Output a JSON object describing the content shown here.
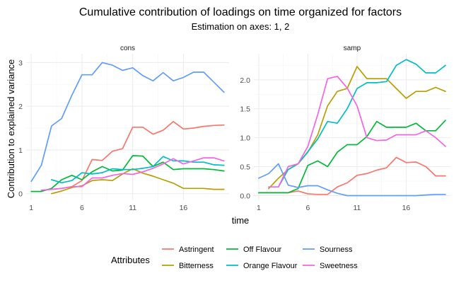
{
  "chart_data": {
    "type": "line",
    "title": "Cumulative contribution of loadings on time organized for factors",
    "subtitle": "Estimation on axes: 1, 2",
    "xlabel": "time",
    "ylabel": "Contribution to explained variance",
    "x_ticks": [
      1,
      6,
      11,
      16
    ],
    "legend": {
      "title": "Attributes",
      "position": "bottom",
      "entries": [
        "Astringent",
        "Bitterness",
        "Off Flavour",
        "Orange Flavour",
        "Sourness",
        "Sweetness"
      ]
    },
    "colors": {
      "Astringent": "#F8766D",
      "Bitterness": "#B79F00",
      "Off Flavour": "#00BA38",
      "Orange Flavour": "#00BFC4",
      "Sourness": "#619CFF",
      "Sweetness": "#F564E3"
    },
    "panels": [
      {
        "name": "cons",
        "xlim": [
          0.5,
          20.5
        ],
        "ylim": [
          -0.15,
          3.2
        ],
        "y_ticks": [
          0,
          1,
          2,
          3
        ],
        "series": [
          {
            "name": "Astringent",
            "x": [
              2,
              3,
              4,
              5,
              6,
              7,
              8,
              9,
              10,
              11,
              12,
              13,
              14,
              15,
              16,
              17,
              18,
              19,
              20
            ],
            "values": [
              0.08,
              0.1,
              0.12,
              0.16,
              0.3,
              0.78,
              0.76,
              0.97,
              1.03,
              1.52,
              1.52,
              1.36,
              1.45,
              1.65,
              1.48,
              1.5,
              1.54,
              1.56,
              1.57
            ]
          },
          {
            "name": "Bitterness",
            "x": [
              3,
              4,
              5,
              6,
              7,
              8,
              9,
              10,
              11,
              12,
              13,
              14,
              15,
              16,
              17,
              18,
              19,
              20
            ],
            "values": [
              0.0,
              0.06,
              0.14,
              0.18,
              0.3,
              0.32,
              0.3,
              0.45,
              0.57,
              0.47,
              0.4,
              0.32,
              0.24,
              0.12,
              0.12,
              0.12,
              0.1,
              0.1
            ]
          },
          {
            "name": "Off Flavour",
            "x": [
              1,
              2,
              3,
              4,
              5,
              6,
              7,
              8,
              9,
              10,
              11,
              12,
              13,
              14,
              15,
              16,
              17,
              18,
              19,
              20
            ],
            "values": [
              0.05,
              0.05,
              0.12,
              0.32,
              0.42,
              0.32,
              0.5,
              0.62,
              0.52,
              0.54,
              0.87,
              0.86,
              0.62,
              0.72,
              0.55,
              0.57,
              0.57,
              0.57,
              0.55,
              0.52
            ]
          },
          {
            "name": "Orange Flavour",
            "x": [
              3,
              4,
              5,
              6,
              7,
              8,
              9,
              10,
              11,
              12,
              13,
              14,
              15,
              16,
              17,
              18,
              19,
              20
            ],
            "values": [
              0.32,
              0.25,
              0.3,
              0.48,
              0.45,
              0.48,
              0.57,
              0.55,
              0.55,
              0.58,
              0.62,
              0.85,
              0.75,
              0.75,
              0.72,
              0.72,
              0.66,
              0.65
            ]
          },
          {
            "name": "Sourness",
            "x": [
              1,
              2,
              3,
              4,
              5,
              6,
              7,
              8,
              9,
              10,
              11,
              12,
              13,
              14,
              15,
              16,
              17,
              18,
              19,
              20
            ],
            "values": [
              0.28,
              0.65,
              1.55,
              1.72,
              2.25,
              2.72,
              2.72,
              3.0,
              2.94,
              2.82,
              2.88,
              2.7,
              2.58,
              2.77,
              2.58,
              2.66,
              2.78,
              2.78,
              2.55,
              2.32
            ]
          },
          {
            "name": "Sweetness",
            "x": [
              2,
              3,
              4,
              5,
              6,
              7,
              8,
              9,
              10,
              11,
              12,
              13,
              14,
              15,
              16,
              17,
              18,
              19,
              20
            ],
            "values": [
              0.08,
              0.1,
              0.12,
              0.16,
              0.16,
              0.36,
              0.36,
              0.42,
              0.46,
              0.44,
              0.5,
              0.58,
              0.68,
              0.8,
              0.68,
              0.75,
              0.82,
              0.82,
              0.75
            ]
          }
        ]
      },
      {
        "name": "samp",
        "xlim": [
          0.5,
          20.5
        ],
        "ylim": [
          -0.08,
          2.45
        ],
        "y_ticks": [
          0.0,
          0.5,
          1.0,
          1.5,
          2.0
        ],
        "series": [
          {
            "name": "Astringent",
            "x": [
              1,
              2,
              3,
              4,
              5,
              6,
              7,
              8,
              9,
              10,
              11,
              12,
              13,
              14,
              15,
              16,
              17,
              18,
              19,
              20
            ],
            "values": [
              0.05,
              0.05,
              0.05,
              0.05,
              0.08,
              0.03,
              0.02,
              0.02,
              0.15,
              0.22,
              0.35,
              0.38,
              0.44,
              0.48,
              0.66,
              0.57,
              0.58,
              0.5,
              0.34,
              0.34
            ]
          },
          {
            "name": "Bitterness",
            "x": [
              2,
              3,
              4,
              5,
              6,
              7,
              8,
              9,
              10,
              11,
              12,
              13,
              14,
              15,
              16,
              17,
              18,
              19,
              20
            ],
            "values": [
              0.12,
              0.3,
              0.45,
              0.55,
              0.75,
              1.05,
              1.55,
              1.8,
              1.85,
              2.23,
              2.02,
              2.02,
              2.02,
              1.85,
              1.68,
              1.8,
              1.8,
              1.87,
              1.8
            ]
          },
          {
            "name": "Off Flavour",
            "x": [
              1,
              2,
              3,
              4,
              5,
              6,
              7,
              8,
              9,
              10,
              11,
              12,
              13,
              14,
              15,
              16,
              17,
              18,
              19,
              20
            ],
            "values": [
              0.05,
              0.05,
              0.05,
              0.05,
              0.12,
              0.52,
              0.6,
              0.5,
              0.75,
              0.88,
              0.88,
              1.02,
              1.28,
              1.18,
              1.18,
              1.18,
              1.25,
              1.12,
              1.12,
              1.3
            ]
          },
          {
            "name": "Orange Flavour",
            "x": [
              3,
              4,
              5,
              6,
              7,
              8,
              9,
              10,
              11,
              12,
              13,
              14,
              15,
              16,
              17,
              18,
              19,
              20
            ],
            "values": [
              0.15,
              0.45,
              0.55,
              0.76,
              0.98,
              1.28,
              1.25,
              1.5,
              1.85,
              1.95,
              1.95,
              1.97,
              2.25,
              2.35,
              2.27,
              2.12,
              2.12,
              2.25
            ]
          },
          {
            "name": "Sourness",
            "x": [
              1,
              2,
              3,
              4,
              5,
              6,
              7,
              8,
              9,
              10,
              11,
              12,
              13,
              14,
              15,
              16,
              17,
              18,
              19,
              20
            ],
            "values": [
              0.3,
              0.38,
              0.55,
              0.18,
              0.14,
              0.17,
              0.17,
              0.1,
              0.04,
              0.0,
              0.0,
              0.0,
              0.0,
              0.0,
              0.0,
              0.0,
              0.0,
              0.01,
              0.02,
              0.02
            ]
          },
          {
            "name": "Sweetness",
            "x": [
              2,
              3,
              4,
              5,
              6,
              7,
              8,
              9,
              10,
              11,
              12,
              13,
              14,
              15,
              16,
              17,
              18,
              19,
              20
            ],
            "values": [
              0.15,
              0.15,
              0.5,
              0.55,
              0.85,
              1.4,
              2.02,
              2.06,
              1.86,
              1.55,
              1.0,
              0.95,
              0.96,
              1.05,
              1.05,
              1.05,
              1.12,
              1.0,
              0.85
            ]
          }
        ]
      }
    ]
  }
}
